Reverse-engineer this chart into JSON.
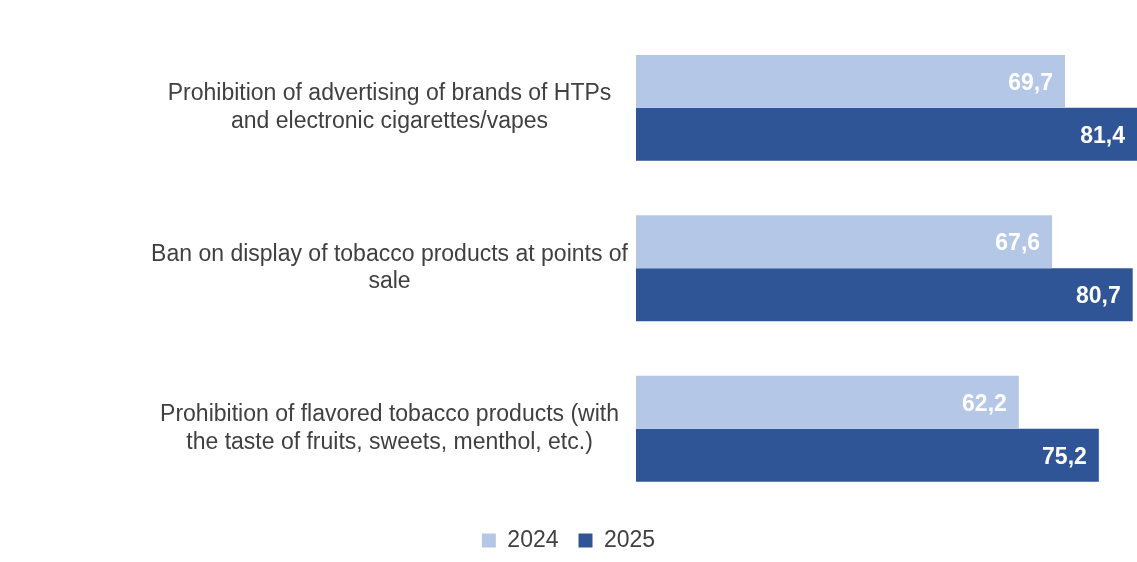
{
  "chart_data": {
    "type": "bar",
    "orientation": "horizontal",
    "categories": [
      "Prohibition of advertising of brands of HTPs and electronic cigarettes/vapes",
      "Ban on display of tobacco products at points of sale",
      "Prohibition of flavored tobacco products (with the taste of fruits, sweets, menthol, etc.)"
    ],
    "series": [
      {
        "name": "2024",
        "color": "#b4c7e7",
        "values": [
          69.7,
          67.6,
          62.2
        ],
        "value_labels": [
          "69,7",
          "67,6",
          "62,2"
        ]
      },
      {
        "name": "2025",
        "color": "#2f5597",
        "values": [
          81.4,
          80.7,
          75.2
        ],
        "value_labels": [
          "81,4",
          "80,7",
          "75,2"
        ]
      }
    ],
    "xlim": [
      0,
      81.4
    ],
    "tick_labels": "y",
    "legend": "bottom"
  }
}
